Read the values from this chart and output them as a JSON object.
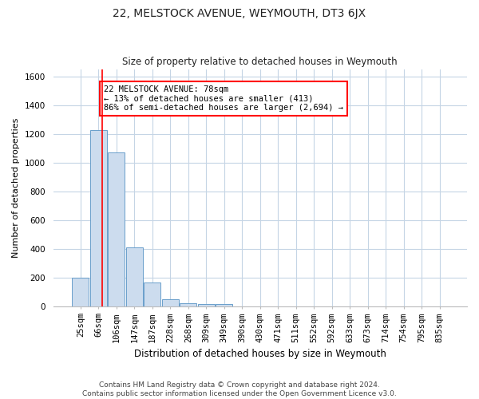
{
  "title": "22, MELSTOCK AVENUE, WEYMOUTH, DT3 6JX",
  "subtitle": "Size of property relative to detached houses in Weymouth",
  "xlabel": "Distribution of detached houses by size in Weymouth",
  "ylabel": "Number of detached properties",
  "categories": [
    "25sqm",
    "66sqm",
    "106sqm",
    "147sqm",
    "187sqm",
    "228sqm",
    "268sqm",
    "309sqm",
    "349sqm",
    "390sqm",
    "430sqm",
    "471sqm",
    "511sqm",
    "552sqm",
    "592sqm",
    "633sqm",
    "673sqm",
    "714sqm",
    "754sqm",
    "795sqm",
    "835sqm"
  ],
  "values": [
    200,
    1230,
    1070,
    410,
    165,
    45,
    22,
    13,
    13,
    0,
    0,
    0,
    0,
    0,
    0,
    0,
    0,
    0,
    0,
    0,
    0
  ],
  "bar_color": "#ccdcee",
  "bar_edge_color": "#6a9fcb",
  "red_line_x": 1.2,
  "annotation_text": "22 MELSTOCK AVENUE: 78sqm\n← 13% of detached houses are smaller (413)\n86% of semi-detached houses are larger (2,694) →",
  "ylim": [
    0,
    1650
  ],
  "yticks": [
    0,
    200,
    400,
    600,
    800,
    1000,
    1200,
    1400,
    1600
  ],
  "footer_line1": "Contains HM Land Registry data © Crown copyright and database right 2024.",
  "footer_line2": "Contains public sector information licensed under the Open Government Licence v3.0.",
  "bg_color": "#ffffff",
  "grid_color": "#c5d5e5",
  "title_fontsize": 10,
  "subtitle_fontsize": 8.5,
  "ylabel_fontsize": 8,
  "xlabel_fontsize": 8.5,
  "tick_fontsize": 7.5,
  "annot_fontsize": 7.5,
  "footer_fontsize": 6.5
}
